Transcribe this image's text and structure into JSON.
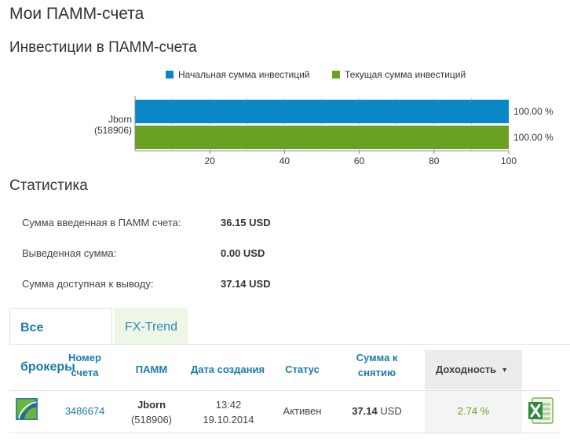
{
  "page": {
    "title": "Мои ПАММ-счета"
  },
  "investments": {
    "title": "Инвестиции в ПАММ-счета",
    "chart_data": {
      "type": "bar",
      "orientation": "horizontal",
      "categories": [
        "Jborn\n(518906)"
      ],
      "category_name": "Jborn",
      "category_id": "(518906)",
      "series": [
        {
          "name": "Начальная сумма инвестиций",
          "values": [
            100
          ],
          "color": "#0a87c7"
        },
        {
          "name": "Текущая сумма инвестиций",
          "values": [
            100
          ],
          "color": "#6aa121"
        }
      ],
      "data_labels": [
        "100.00 %",
        "100.00 %"
      ],
      "xlim": [
        0,
        100
      ],
      "x_ticks": [
        20,
        40,
        60,
        80,
        100
      ],
      "legend_position": "top",
      "grid": true
    }
  },
  "stats": {
    "title": "Статистика",
    "rows": [
      {
        "label": "Сумма введенная в ПАММ счета:",
        "value": "36.15 USD"
      },
      {
        "label": "Выведенная сумма:",
        "value": "0.00 USD"
      },
      {
        "label": "Сумма доступная к выводу:",
        "value": "37.14 USD"
      }
    ]
  },
  "tabs": [
    {
      "label": "Все брокеры",
      "active": true
    },
    {
      "label": "FX-Trend",
      "active": false
    }
  ],
  "table": {
    "headers": {
      "account_line1": "Номер",
      "account_line2": "счета",
      "pamm": "ПАММ",
      "created": "Дата создания",
      "status": "Статус",
      "withdraw_line1": "Сумма к",
      "withdraw_line2": "снятию",
      "yield": "Доходность"
    },
    "rows": [
      {
        "account": "3486674",
        "pamm_name": "Jborn",
        "pamm_id": "(518906)",
        "time": "13:42",
        "date": "19.10.2014",
        "status": "Активен",
        "amount": "37.14",
        "currency": "USD",
        "yield": "2.74 %"
      }
    ]
  },
  "icons": {
    "broker": "broker-logo-icon",
    "export": "excel-export-icon"
  },
  "colors": {
    "link": "#1a7bb0",
    "positive": "#6aa121",
    "initial": "#0a87c7",
    "current": "#6aa121"
  }
}
